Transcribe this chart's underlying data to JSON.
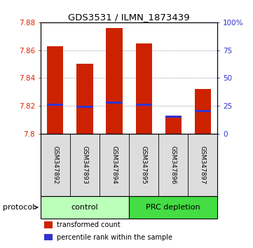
{
  "title": "GDS3531 / ILMN_1873439",
  "samples": [
    "GSM347892",
    "GSM347893",
    "GSM347894",
    "GSM347895",
    "GSM347896",
    "GSM347897"
  ],
  "transformed_counts": [
    7.863,
    7.85,
    7.876,
    7.865,
    7.812,
    7.832
  ],
  "percentile_ranks": [
    26,
    24,
    28,
    26,
    15,
    20
  ],
  "y_min": 7.8,
  "y_max": 7.88,
  "y_ticks": [
    7.8,
    7.82,
    7.84,
    7.86,
    7.88
  ],
  "right_y_ticks": [
    0,
    25,
    50,
    75,
    100
  ],
  "right_y_labels": [
    "0",
    "25",
    "50",
    "75",
    "100%"
  ],
  "bar_color": "#cc2200",
  "percentile_color": "#3333cc",
  "control_color": "#bbffbb",
  "prc_color": "#44dd44",
  "left_tick_color": "#dd2200",
  "right_tick_color": "#3333cc",
  "sample_bg_color": "#dddddd",
  "bar_width": 0.55,
  "protocol_label": "protocol"
}
